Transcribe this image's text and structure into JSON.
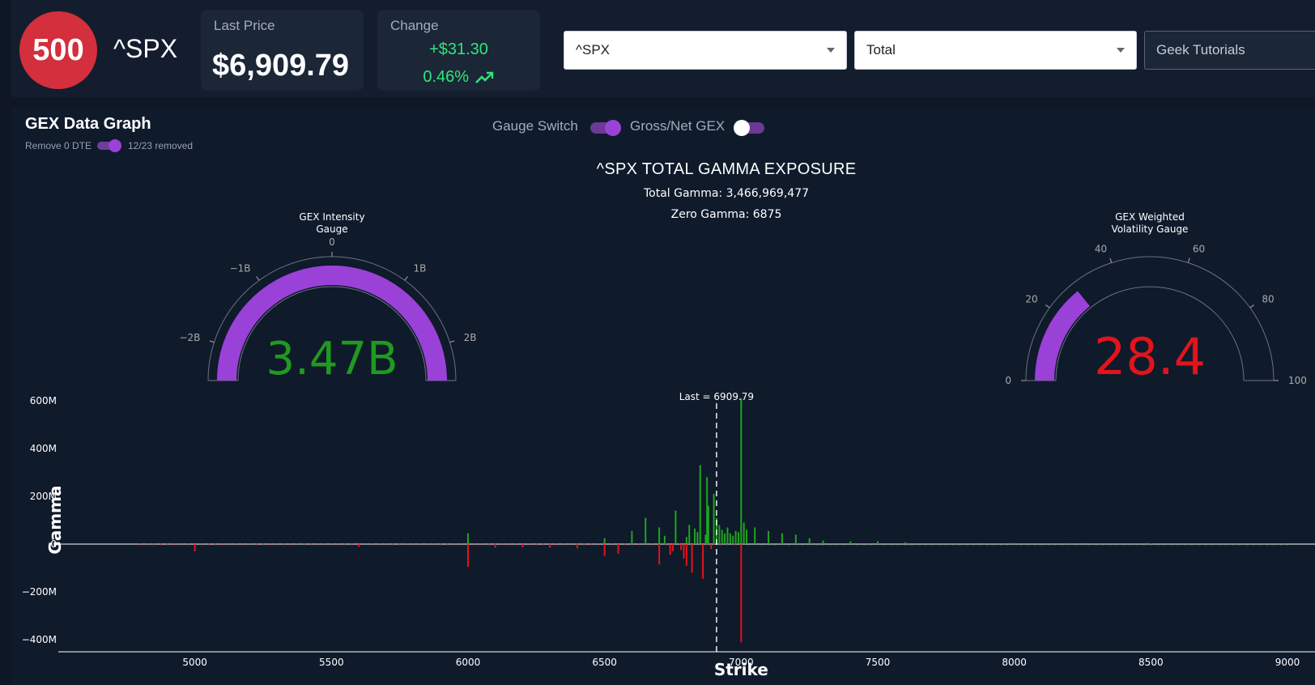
{
  "header": {
    "logo_text": "500",
    "ticker": "^SPX",
    "last_price": {
      "label": "Last Price",
      "value": "$6,909.79"
    },
    "change": {
      "label": "Change",
      "amount": "+$31.30",
      "percent": "0.46%"
    },
    "symbol_select": "^SPX",
    "type_select": "Total",
    "tutorials_label": "Geek Tutorials"
  },
  "panel": {
    "title": "GEX Data Graph",
    "remove_label": "Remove 0 DTE",
    "remove_on": true,
    "removed_note": "12/23 removed",
    "gauge_switch_label": "Gauge Switch",
    "gauge_switch_on": true,
    "gross_net_label": "Gross/Net GEX",
    "gross_net_on": false
  },
  "colors": {
    "accent": "#9a41d8",
    "positive": "#1fa51f",
    "negative": "#e3131b",
    "logo": "#d32f3c",
    "change_green": "#2fe67a"
  },
  "chart_data": [
    {
      "type": "gauge",
      "title": "GEX Intensity Gauge",
      "title_lines": [
        "GEX Intensity",
        "Gauge"
      ],
      "value": 3.466969477,
      "display": "3.47B",
      "range": [
        -2.5,
        2.5
      ],
      "ticks": [
        {
          "v": -2,
          "label": "−2B"
        },
        {
          "v": -1,
          "label": "−1B"
        },
        {
          "v": 0,
          "label": "0"
        },
        {
          "v": 1,
          "label": "1B"
        },
        {
          "v": 2,
          "label": "2B"
        }
      ]
    },
    {
      "type": "gauge",
      "title": "GEX Weighted Volatility Gauge",
      "title_lines": [
        "GEX Weighted",
        "Volatility Gauge"
      ],
      "value": 28.4,
      "display": "28.4",
      "range": [
        0,
        100
      ],
      "ticks": [
        {
          "v": 0,
          "label": "0"
        },
        {
          "v": 20,
          "label": "20"
        },
        {
          "v": 40,
          "label": "40"
        },
        {
          "v": 60,
          "label": "60"
        },
        {
          "v": 80,
          "label": "80"
        },
        {
          "v": 100,
          "label": "100"
        }
      ]
    },
    {
      "type": "bar",
      "title": "^SPX TOTAL GAMMA EXPOSURE",
      "total_gamma_text": "Total Gamma: 3,466,969,477",
      "zero_gamma_text": "Zero Gamma: 6875",
      "xlabel": "Strike",
      "ylabel": "Gamma",
      "xlim": [
        4500,
        9000
      ],
      "ylim": [
        -450000000,
        650000000
      ],
      "xticks": [
        5000,
        5500,
        6000,
        6500,
        7000,
        7500,
        8000,
        8500,
        9000
      ],
      "yticks": [
        {
          "v": 600000000,
          "label": "600M"
        },
        {
          "v": 400000000,
          "label": "400M"
        },
        {
          "v": 200000000,
          "label": "200M"
        },
        {
          "v": 0,
          "label": "0"
        },
        {
          "v": -200000000,
          "label": "−200M"
        },
        {
          "v": -400000000,
          "label": "−400M"
        }
      ],
      "last_price": 6909.79,
      "last_label": "Last = 6909.79",
      "series": [
        {
          "x": [
            5000,
            5600,
            6000,
            6000,
            6100,
            6200,
            6300,
            6400,
            6500,
            6500,
            6550,
            6600,
            6650,
            6700,
            6700,
            6720,
            6740,
            6750,
            6760,
            6780,
            6790,
            6800,
            6800,
            6810,
            6820,
            6830,
            6840,
            6850,
            6860,
            6870,
            6875,
            6880,
            6890,
            6900,
            6910,
            6920,
            6930,
            6940,
            6950,
            6960,
            6970,
            6980,
            6990,
            7000,
            7000,
            7010,
            7020,
            7050,
            7100,
            7150,
            7200,
            7250,
            7300,
            7400,
            7500,
            7600,
            8000,
            8200,
            8500
          ],
          "y": [
            -30000000,
            -12000000,
            45000000,
            -95000000,
            -15000000,
            -14000000,
            -15000000,
            -18000000,
            25000000,
            -50000000,
            -40000000,
            55000000,
            110000000,
            70000000,
            -85000000,
            35000000,
            -45000000,
            -30000000,
            140000000,
            -25000000,
            -60000000,
            30000000,
            -90000000,
            80000000,
            -120000000,
            65000000,
            50000000,
            330000000,
            -145000000,
            40000000,
            280000000,
            160000000,
            -20000000,
            210000000,
            110000000,
            80000000,
            60000000,
            45000000,
            70000000,
            45000000,
            35000000,
            55000000,
            50000000,
            610000000,
            -410000000,
            90000000,
            60000000,
            70000000,
            55000000,
            45000000,
            40000000,
            25000000,
            15000000,
            12000000,
            12000000,
            8000000,
            5000000,
            4000000,
            3000000
          ]
        }
      ]
    }
  ]
}
